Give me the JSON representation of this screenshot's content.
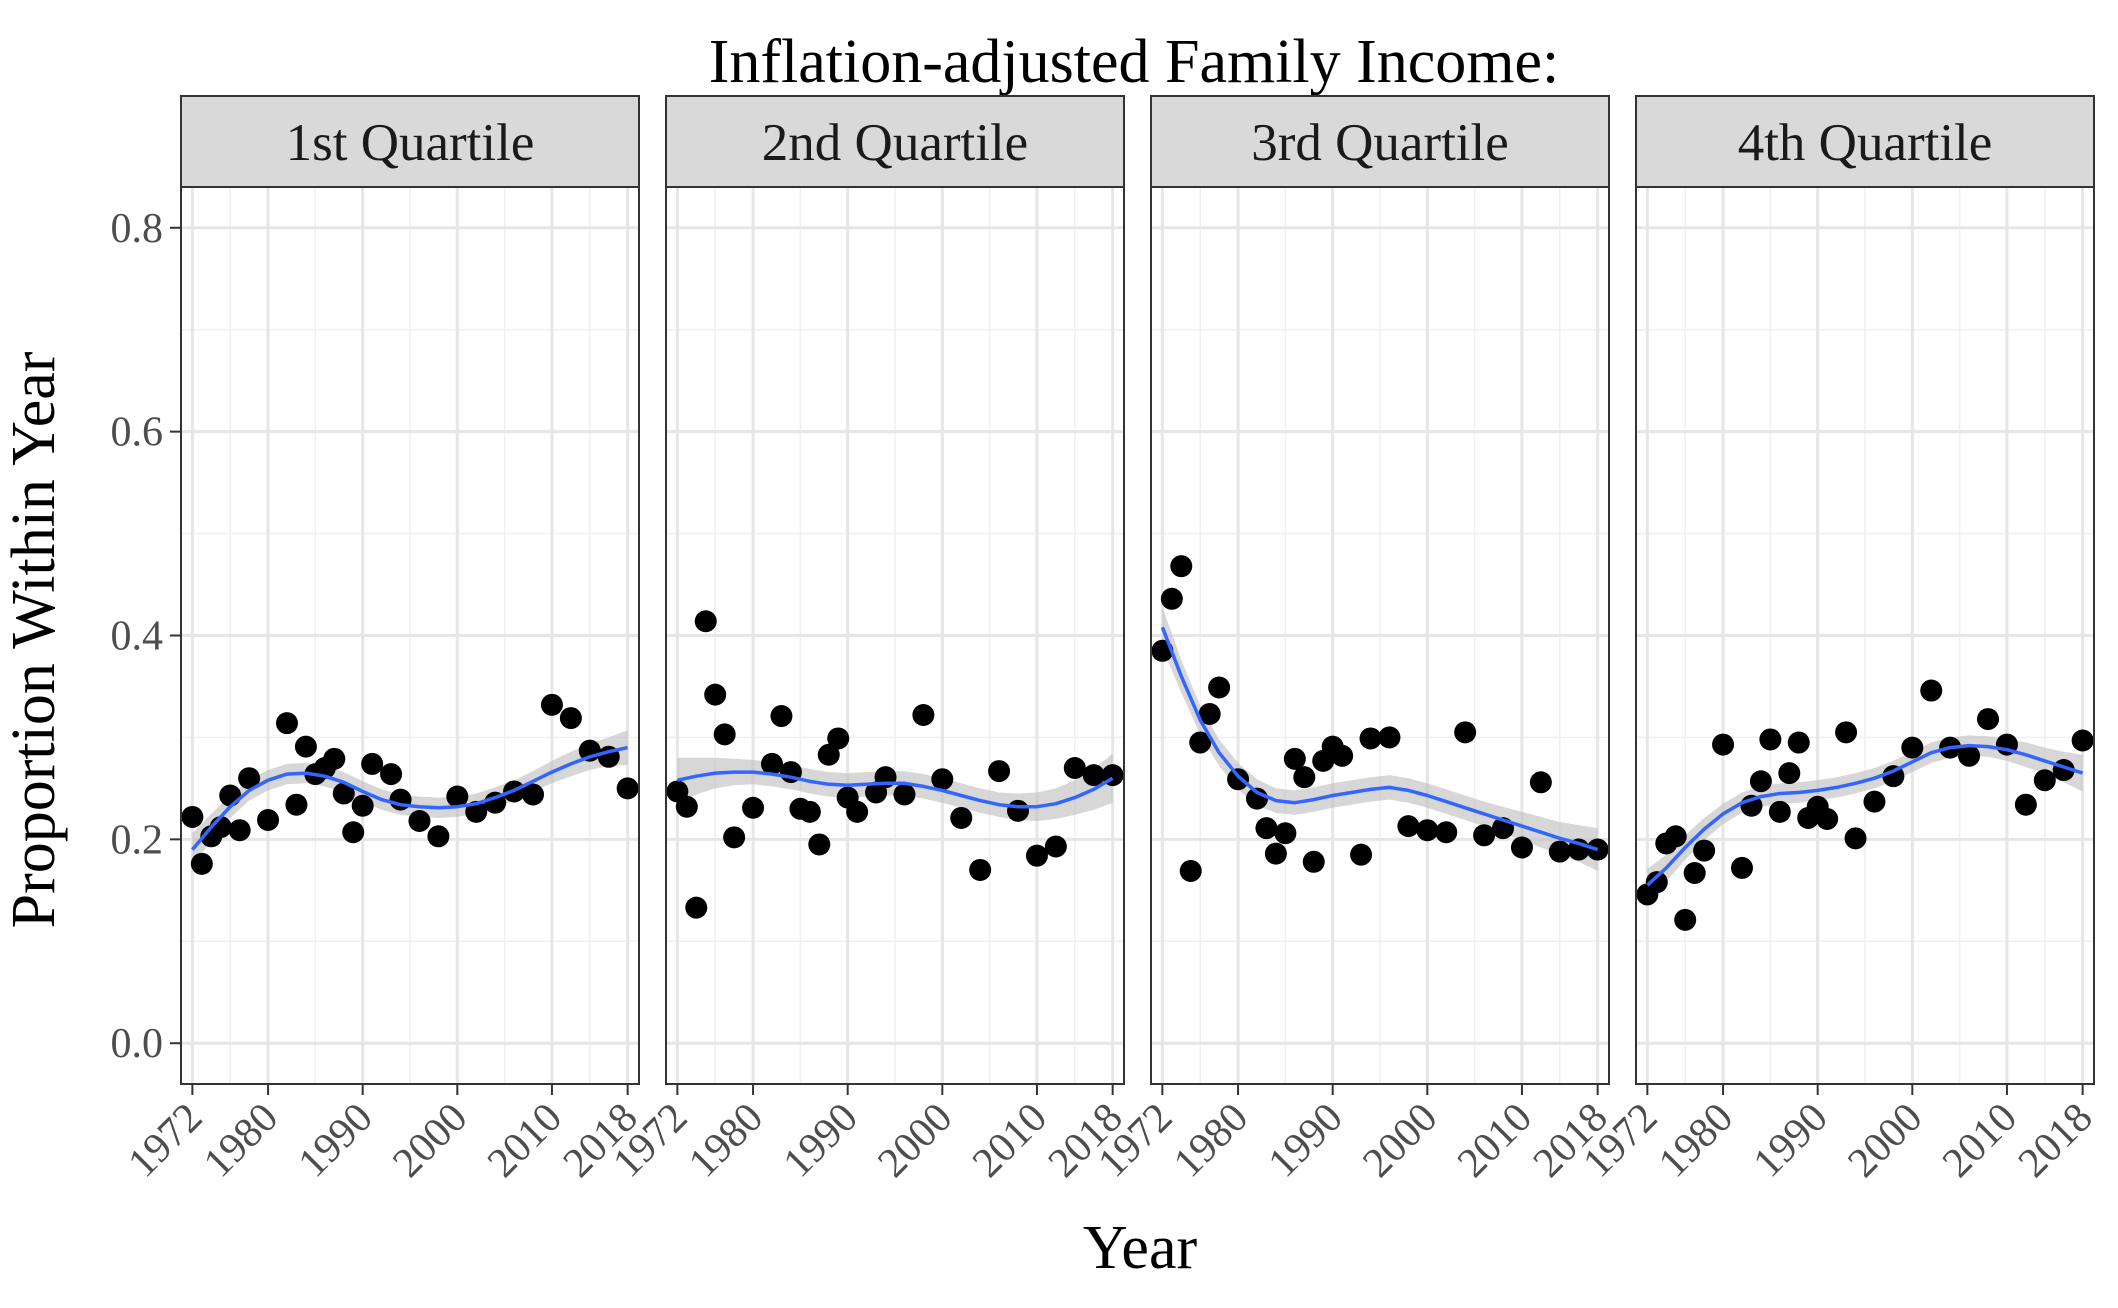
{
  "chart_data": {
    "type": "scatter",
    "title": "Inflation-adjusted Family Income:",
    "xlabel": "Year",
    "ylabel": "Proportion Within Year",
    "xlim": [
      1970.8,
      2019.2
    ],
    "ylim": [
      -0.04,
      0.84
    ],
    "x_ticks": [
      1972,
      1980,
      1990,
      2000,
      2010,
      2018
    ],
    "x_tick_labels": [
      "1972",
      "1980",
      "1990",
      "2000",
      "2010",
      "2018"
    ],
    "y_ticks": [
      0.0,
      0.2,
      0.4,
      0.6,
      0.8
    ],
    "y_tick_labels": [
      "0.0",
      "0.2",
      "0.4",
      "0.6",
      "0.8"
    ],
    "grid": true,
    "smooth_color": "#3366FF",
    "point_color": "#000000",
    "band_color": "#bdbdbd",
    "strip_fill": "#d9d9d9",
    "panels": [
      {
        "label": "1st Quartile",
        "points": [
          [
            1972,
            0.222
          ],
          [
            1973,
            0.176
          ],
          [
            1974,
            0.203
          ],
          [
            1975,
            0.212
          ],
          [
            1976,
            0.243
          ],
          [
            1977,
            0.209
          ],
          [
            1978,
            0.26
          ],
          [
            1980,
            0.219
          ],
          [
            1982,
            0.314
          ],
          [
            1983,
            0.234
          ],
          [
            1984,
            0.291
          ],
          [
            1985,
            0.264
          ],
          [
            1986,
            0.27
          ],
          [
            1987,
            0.279
          ],
          [
            1988,
            0.245
          ],
          [
            1989,
            0.207
          ],
          [
            1990,
            0.233
          ],
          [
            1991,
            0.274
          ],
          [
            1993,
            0.264
          ],
          [
            1994,
            0.239
          ],
          [
            1996,
            0.218
          ],
          [
            1998,
            0.203
          ],
          [
            2000,
            0.242
          ],
          [
            2002,
            0.227
          ],
          [
            2004,
            0.236
          ],
          [
            2006,
            0.247
          ],
          [
            2008,
            0.244
          ],
          [
            2010,
            0.332
          ],
          [
            2012,
            0.319
          ],
          [
            2014,
            0.287
          ],
          [
            2016,
            0.281
          ],
          [
            2018,
            0.25
          ]
        ],
        "smooth": [
          [
            1972,
            0.19
          ],
          [
            1974,
            0.212
          ],
          [
            1976,
            0.232
          ],
          [
            1978,
            0.248
          ],
          [
            1980,
            0.258
          ],
          [
            1982,
            0.264
          ],
          [
            1984,
            0.265
          ],
          [
            1986,
            0.262
          ],
          [
            1988,
            0.256
          ],
          [
            1990,
            0.247
          ],
          [
            1992,
            0.239
          ],
          [
            1994,
            0.234
          ],
          [
            1996,
            0.232
          ],
          [
            1998,
            0.231
          ],
          [
            2000,
            0.232
          ],
          [
            2002,
            0.235
          ],
          [
            2004,
            0.241
          ],
          [
            2006,
            0.248
          ],
          [
            2008,
            0.257
          ],
          [
            2010,
            0.266
          ],
          [
            2012,
            0.274
          ],
          [
            2014,
            0.281
          ],
          [
            2016,
            0.286
          ],
          [
            2018,
            0.29
          ]
        ],
        "band": [
          0.016,
          0.013,
          0.011,
          0.01,
          0.01,
          0.01,
          0.01,
          0.01,
          0.01,
          0.01,
          0.01,
          0.01,
          0.01,
          0.01,
          0.01,
          0.01,
          0.01,
          0.01,
          0.01,
          0.011,
          0.012,
          0.013,
          0.014,
          0.017
        ]
      },
      {
        "label": "2nd Quartile",
        "points": [
          [
            1972,
            0.247
          ],
          [
            1973,
            0.232
          ],
          [
            1974,
            0.133
          ],
          [
            1975,
            0.414
          ],
          [
            1976,
            0.342
          ],
          [
            1977,
            0.303
          ],
          [
            1978,
            0.202
          ],
          [
            1980,
            0.231
          ],
          [
            1982,
            0.274
          ],
          [
            1983,
            0.321
          ],
          [
            1984,
            0.266
          ],
          [
            1985,
            0.23
          ],
          [
            1986,
            0.227
          ],
          [
            1987,
            0.195
          ],
          [
            1988,
            0.283
          ],
          [
            1989,
            0.299
          ],
          [
            1990,
            0.241
          ],
          [
            1991,
            0.227
          ],
          [
            1993,
            0.246
          ],
          [
            1994,
            0.261
          ],
          [
            1996,
            0.244
          ],
          [
            1998,
            0.322
          ],
          [
            2000,
            0.259
          ],
          [
            2002,
            0.221
          ],
          [
            2004,
            0.17
          ],
          [
            2006,
            0.267
          ],
          [
            2008,
            0.228
          ],
          [
            2010,
            0.184
          ],
          [
            2012,
            0.193
          ],
          [
            2014,
            0.27
          ],
          [
            2016,
            0.263
          ],
          [
            2018,
            0.263
          ]
        ],
        "smooth": [
          [
            1972,
            0.258
          ],
          [
            1974,
            0.262
          ],
          [
            1976,
            0.265
          ],
          [
            1978,
            0.266
          ],
          [
            1980,
            0.266
          ],
          [
            1982,
            0.264
          ],
          [
            1984,
            0.261
          ],
          [
            1986,
            0.257
          ],
          [
            1988,
            0.254
          ],
          [
            1990,
            0.253
          ],
          [
            1992,
            0.254
          ],
          [
            1994,
            0.255
          ],
          [
            1996,
            0.255
          ],
          [
            1998,
            0.252
          ],
          [
            2000,
            0.248
          ],
          [
            2002,
            0.243
          ],
          [
            2004,
            0.238
          ],
          [
            2006,
            0.234
          ],
          [
            2008,
            0.232
          ],
          [
            2010,
            0.232
          ],
          [
            2012,
            0.235
          ],
          [
            2014,
            0.241
          ],
          [
            2016,
            0.249
          ],
          [
            2018,
            0.26
          ]
        ],
        "band": [
          0.022,
          0.018,
          0.015,
          0.013,
          0.012,
          0.012,
          0.012,
          0.012,
          0.012,
          0.012,
          0.012,
          0.012,
          0.012,
          0.012,
          0.012,
          0.012,
          0.012,
          0.012,
          0.013,
          0.014,
          0.015,
          0.017,
          0.02,
          0.024
        ]
      },
      {
        "label": "3rd Quartile",
        "points": [
          [
            1972,
            0.385
          ],
          [
            1973,
            0.436
          ],
          [
            1974,
            0.468
          ],
          [
            1975,
            0.169
          ],
          [
            1976,
            0.295
          ],
          [
            1977,
            0.323
          ],
          [
            1978,
            0.349
          ],
          [
            1980,
            0.259
          ],
          [
            1982,
            0.24
          ],
          [
            1983,
            0.211
          ],
          [
            1984,
            0.186
          ],
          [
            1985,
            0.206
          ],
          [
            1986,
            0.279
          ],
          [
            1987,
            0.261
          ],
          [
            1988,
            0.178
          ],
          [
            1989,
            0.277
          ],
          [
            1990,
            0.291
          ],
          [
            1991,
            0.282
          ],
          [
            1993,
            0.185
          ],
          [
            1994,
            0.299
          ],
          [
            1996,
            0.3
          ],
          [
            1998,
            0.213
          ],
          [
            2000,
            0.209
          ],
          [
            2002,
            0.207
          ],
          [
            2004,
            0.305
          ],
          [
            2006,
            0.204
          ],
          [
            2008,
            0.211
          ],
          [
            2010,
            0.192
          ],
          [
            2012,
            0.256
          ],
          [
            2014,
            0.188
          ],
          [
            2016,
            0.19
          ],
          [
            2018,
            0.19
          ]
        ],
        "smooth": [
          [
            1972,
            0.408
          ],
          [
            1974,
            0.36
          ],
          [
            1976,
            0.317
          ],
          [
            1978,
            0.285
          ],
          [
            1980,
            0.262
          ],
          [
            1982,
            0.246
          ],
          [
            1984,
            0.238
          ],
          [
            1986,
            0.236
          ],
          [
            1988,
            0.239
          ],
          [
            1990,
            0.243
          ],
          [
            1992,
            0.246
          ],
          [
            1994,
            0.249
          ],
          [
            1996,
            0.251
          ],
          [
            1998,
            0.248
          ],
          [
            2000,
            0.243
          ],
          [
            2002,
            0.237
          ],
          [
            2004,
            0.231
          ],
          [
            2006,
            0.225
          ],
          [
            2008,
            0.219
          ],
          [
            2010,
            0.213
          ],
          [
            2012,
            0.207
          ],
          [
            2014,
            0.201
          ],
          [
            2016,
            0.196
          ],
          [
            2018,
            0.19
          ]
        ],
        "band": [
          0.02,
          0.016,
          0.014,
          0.013,
          0.013,
          0.013,
          0.012,
          0.012,
          0.012,
          0.012,
          0.012,
          0.012,
          0.012,
          0.012,
          0.012,
          0.012,
          0.012,
          0.012,
          0.013,
          0.014,
          0.015,
          0.016,
          0.018,
          0.021
        ]
      },
      {
        "label": "4th Quartile",
        "points": [
          [
            1972,
            0.146
          ],
          [
            1973,
            0.158
          ],
          [
            1974,
            0.196
          ],
          [
            1975,
            0.203
          ],
          [
            1976,
            0.121
          ],
          [
            1977,
            0.167
          ],
          [
            1978,
            0.189
          ],
          [
            1980,
            0.293
          ],
          [
            1982,
            0.172
          ],
          [
            1983,
            0.233
          ],
          [
            1984,
            0.257
          ],
          [
            1985,
            0.298
          ],
          [
            1986,
            0.227
          ],
          [
            1987,
            0.265
          ],
          [
            1988,
            0.295
          ],
          [
            1989,
            0.221
          ],
          [
            1990,
            0.232
          ],
          [
            1991,
            0.22
          ],
          [
            1993,
            0.305
          ],
          [
            1994,
            0.201
          ],
          [
            1996,
            0.237
          ],
          [
            1998,
            0.262
          ],
          [
            2000,
            0.29
          ],
          [
            2002,
            0.346
          ],
          [
            2004,
            0.29
          ],
          [
            2006,
            0.282
          ],
          [
            2008,
            0.318
          ],
          [
            2010,
            0.293
          ],
          [
            2012,
            0.234
          ],
          [
            2014,
            0.258
          ],
          [
            2016,
            0.268
          ],
          [
            2018,
            0.297
          ]
        ],
        "smooth": [
          [
            1972,
            0.155
          ],
          [
            1974,
            0.172
          ],
          [
            1976,
            0.192
          ],
          [
            1978,
            0.21
          ],
          [
            1980,
            0.225
          ],
          [
            1982,
            0.236
          ],
          [
            1984,
            0.242
          ],
          [
            1986,
            0.245
          ],
          [
            1988,
            0.246
          ],
          [
            1990,
            0.248
          ],
          [
            1992,
            0.251
          ],
          [
            1994,
            0.255
          ],
          [
            1996,
            0.26
          ],
          [
            1998,
            0.267
          ],
          [
            2000,
            0.276
          ],
          [
            2002,
            0.285
          ],
          [
            2004,
            0.29
          ],
          [
            2006,
            0.292
          ],
          [
            2008,
            0.291
          ],
          [
            2010,
            0.288
          ],
          [
            2012,
            0.283
          ],
          [
            2014,
            0.277
          ],
          [
            2016,
            0.271
          ],
          [
            2018,
            0.265
          ]
        ],
        "band": [
          0.016,
          0.013,
          0.012,
          0.011,
          0.01,
          0.01,
          0.01,
          0.01,
          0.01,
          0.01,
          0.01,
          0.01,
          0.01,
          0.01,
          0.01,
          0.01,
          0.01,
          0.01,
          0.01,
          0.011,
          0.012,
          0.013,
          0.015,
          0.018
        ]
      }
    ]
  }
}
